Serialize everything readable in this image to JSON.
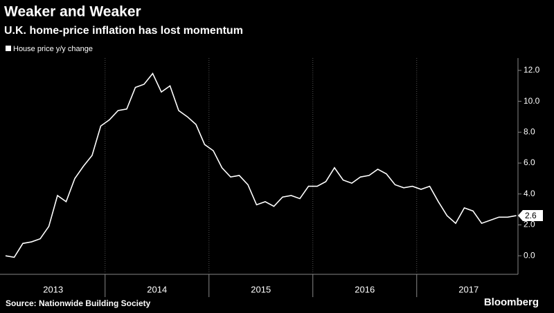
{
  "chart_data": {
    "type": "line",
    "title": "Weaker and Weaker",
    "subtitle": "U.K. home-price inflation has lost momentum",
    "source": "Source: Nationwide Building Society",
    "brand": "Bloomberg",
    "categories": [
      null,
      null,
      null,
      null,
      null,
      null,
      "2013",
      null,
      null,
      null,
      null,
      null,
      null,
      null,
      null,
      null,
      null,
      null,
      "2014",
      null,
      null,
      null,
      null,
      null,
      null,
      null,
      null,
      null,
      null,
      null,
      "2015",
      null,
      null,
      null,
      null,
      null,
      null,
      null,
      null,
      null,
      null,
      null,
      "2016",
      null,
      null,
      null,
      null,
      null,
      null,
      null,
      null,
      null,
      null,
      null,
      "2017",
      null,
      null,
      null,
      null,
      null
    ],
    "series": [
      {
        "name": "House price y/y change",
        "color": "#ffffff",
        "values": [
          0.0,
          -0.1,
          0.8,
          0.9,
          1.1,
          1.9,
          3.9,
          3.5,
          5.0,
          5.8,
          6.5,
          8.4,
          8.8,
          9.4,
          9.5,
          10.9,
          11.1,
          11.8,
          10.6,
          11.0,
          9.4,
          9.0,
          8.5,
          7.2,
          6.8,
          5.7,
          5.1,
          5.2,
          4.6,
          3.3,
          3.5,
          3.2,
          3.8,
          3.9,
          3.7,
          4.5,
          4.5,
          4.8,
          5.7,
          4.9,
          4.7,
          5.1,
          5.2,
          5.6,
          5.3,
          4.6,
          4.4,
          4.5,
          4.3,
          4.5,
          3.5,
          2.6,
          2.1,
          3.1,
          2.9,
          2.1,
          2.3,
          2.5,
          2.5,
          2.6
        ]
      }
    ],
    "ylim": [
      -1.2,
      12.8
    ],
    "yticks": [
      {
        "value": 0,
        "label": "0.0"
      },
      {
        "value": 2,
        "label": "2.0"
      },
      {
        "value": 4,
        "label": "4.0"
      },
      {
        "value": 6,
        "label": "6.0"
      },
      {
        "value": 8,
        "label": "8.0"
      },
      {
        "value": 10,
        "label": "10.0"
      },
      {
        "value": 12,
        "label": "12.0"
      }
    ],
    "grid": false,
    "legend": "top-left"
  }
}
